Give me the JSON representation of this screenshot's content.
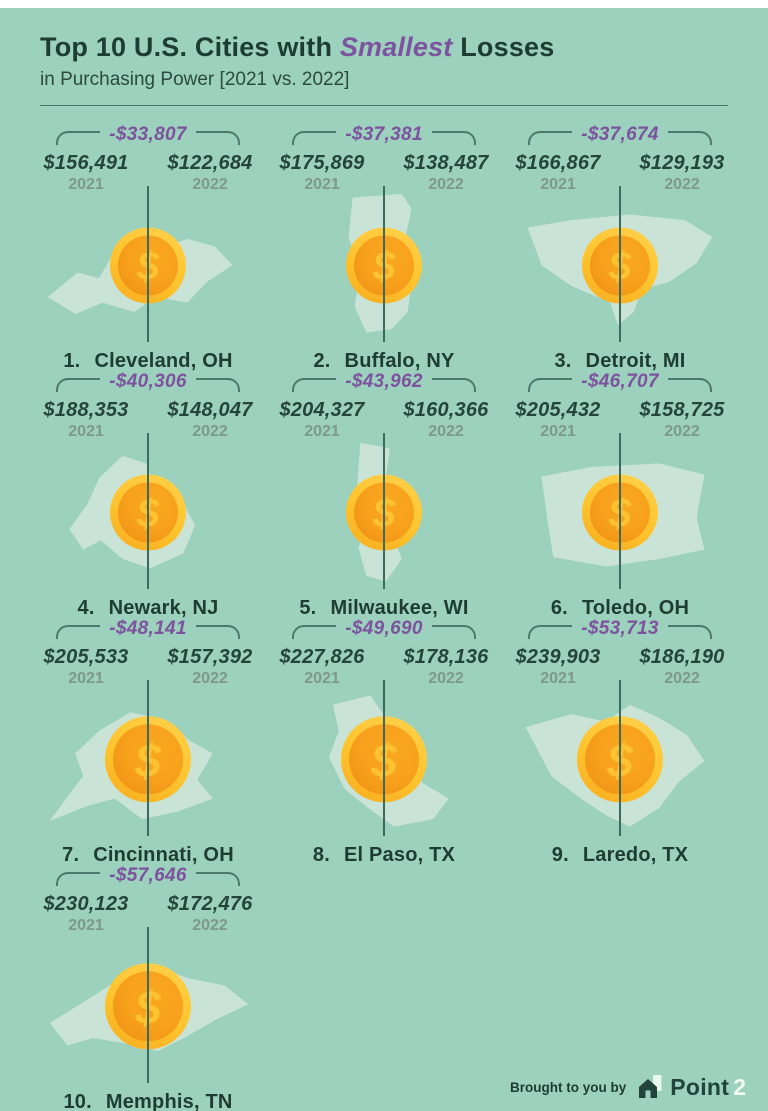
{
  "header": {
    "title_prefix": "Top 10 U.S. Cities with ",
    "title_highlight": "Smallest",
    "title_suffix": " Losses",
    "subtitle": "in Purchasing Power [2021 vs. 2022]",
    "accent_color": "#7d529e",
    "background_color": "#9cd1bd"
  },
  "shared": {
    "coin_symbol": "$"
  },
  "cards": [
    {
      "rank": "1.",
      "city": "Cleveland, OH",
      "loss": "-$33,807",
      "year1_value": "$156,491",
      "year1_label": "2021",
      "year2_value": "$122,684",
      "year2_label": "2022",
      "map_icon": "cleveland-map-silhouette",
      "coin_icon": "dollar-coin-icon"
    },
    {
      "rank": "2.",
      "city": "Buffalo, NY",
      "loss": "-$37,381",
      "year1_value": "$175,869",
      "year1_label": "2021",
      "year2_value": "$138,487",
      "year2_label": "2022",
      "map_icon": "buffalo-map-silhouette",
      "coin_icon": "dollar-coin-icon"
    },
    {
      "rank": "3.",
      "city": "Detroit, MI",
      "loss": "-$37,674",
      "year1_value": "$166,867",
      "year1_label": "2021",
      "year2_value": "$129,193",
      "year2_label": "2022",
      "map_icon": "detroit-map-silhouette",
      "coin_icon": "dollar-coin-icon"
    },
    {
      "rank": "4.",
      "city": "Newark, NJ",
      "loss": "-$40,306",
      "year1_value": "$188,353",
      "year1_label": "2021",
      "year2_value": "$148,047",
      "year2_label": "2022",
      "map_icon": "newark-map-silhouette",
      "coin_icon": "dollar-coin-icon"
    },
    {
      "rank": "5.",
      "city": "Milwaukee, WI",
      "loss": "-$43,962",
      "year1_value": "$204,327",
      "year1_label": "2021",
      "year2_value": "$160,366",
      "year2_label": "2022",
      "map_icon": "milwaukee-map-silhouette",
      "coin_icon": "dollar-coin-icon"
    },
    {
      "rank": "6.",
      "city": "Toledo, OH",
      "loss": "-$46,707",
      "year1_value": "$205,432",
      "year1_label": "2021",
      "year2_value": "$158,725",
      "year2_label": "2022",
      "map_icon": "toledo-map-silhouette",
      "coin_icon": "dollar-coin-icon"
    },
    {
      "rank": "7.",
      "city": "Cincinnati, OH",
      "loss": "-$48,141",
      "year1_value": "$205,533",
      "year1_label": "2021",
      "year2_value": "$157,392",
      "year2_label": "2022",
      "map_icon": "cincinnati-map-silhouette",
      "coin_icon": "dollar-coin-icon"
    },
    {
      "rank": "8.",
      "city": "El Paso, TX",
      "loss": "-$49,690",
      "year1_value": "$227,826",
      "year1_label": "2021",
      "year2_value": "$178,136",
      "year2_label": "2022",
      "map_icon": "el-paso-map-silhouette",
      "coin_icon": "dollar-coin-icon"
    },
    {
      "rank": "9.",
      "city": "Laredo, TX",
      "loss": "-$53,713",
      "year1_value": "$239,903",
      "year1_label": "2021",
      "year2_value": "$186,190",
      "year2_label": "2022",
      "map_icon": "laredo-map-silhouette",
      "coin_icon": "dollar-coin-icon"
    },
    {
      "rank": "10.",
      "city": "Memphis, TN",
      "loss": "-$57,646",
      "year1_value": "$230,123",
      "year1_label": "2021",
      "year2_value": "$172,476",
      "year2_label": "2022",
      "map_icon": "memphis-map-silhouette",
      "coin_icon": "dollar-coin-icon"
    }
  ],
  "footer": {
    "text": "Brought to you by",
    "brand_name": "Point",
    "brand_suffix": "2",
    "logo_icon": "point2-house-logo-icon"
  },
  "chart_data": {
    "type": "table",
    "title": "Top 10 U.S. Cities with Smallest Losses in Purchasing Power [2021 vs. 2022]",
    "categories": [
      "Cleveland, OH",
      "Buffalo, NY",
      "Detroit, MI",
      "Newark, NJ",
      "Milwaukee, WI",
      "Toledo, OH",
      "Cincinnati, OH",
      "El Paso, TX",
      "Laredo, TX",
      "Memphis, TN"
    ],
    "series": [
      {
        "name": "2021",
        "values": [
          156491,
          175869,
          166867,
          188353,
          204327,
          205432,
          205533,
          227826,
          239903,
          230123
        ]
      },
      {
        "name": "2022",
        "values": [
          122684,
          138487,
          129193,
          148047,
          160366,
          158725,
          157392,
          178136,
          186190,
          172476
        ]
      },
      {
        "name": "Loss 2021 vs 2022",
        "values": [
          -33807,
          -37381,
          -37674,
          -40306,
          -43962,
          -46707,
          -48141,
          -49690,
          -53713,
          -57646
        ]
      }
    ],
    "legend_position": "none",
    "grid": false
  }
}
